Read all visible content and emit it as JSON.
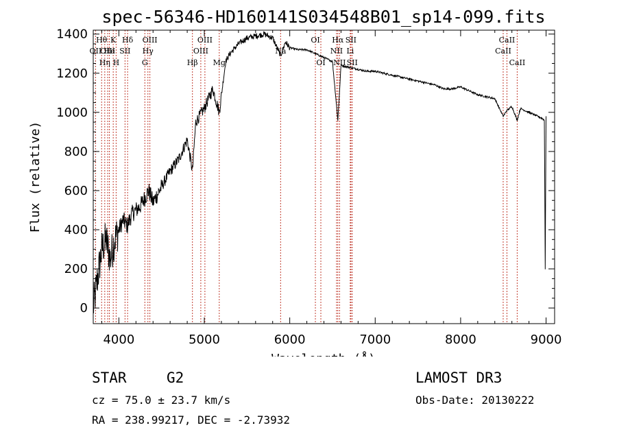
{
  "chart_data": {
    "type": "line",
    "title": "spec-56346-HD160141S034548B01_sp14-099.fits",
    "xlabel": "Wavelength (Å)",
    "ylabel": "Flux (relative)",
    "xlim": [
      3700,
      9100
    ],
    "ylim": [
      -80,
      1420
    ],
    "xticks": [
      4000,
      5000,
      6000,
      7000,
      8000,
      9000
    ],
    "yticks": [
      0,
      200,
      400,
      600,
      800,
      1000,
      1200,
      1400
    ],
    "series": [
      {
        "name": "flux",
        "x": [
          3700,
          3750,
          3800,
          3850,
          3900,
          3950,
          4000,
          4050,
          4100,
          4150,
          4200,
          4250,
          4300,
          4350,
          4400,
          4500,
          4600,
          4700,
          4800,
          4861,
          4900,
          5000,
          5100,
          5175,
          5250,
          5300,
          5400,
          5500,
          5600,
          5700,
          5800,
          5893,
          5950,
          6000,
          6100,
          6200,
          6300,
          6400,
          6500,
          6563,
          6600,
          6700,
          6800,
          6900,
          7000,
          7100,
          7200,
          7300,
          7400,
          7500,
          7600,
          7700,
          7800,
          7900,
          8000,
          8100,
          8200,
          8300,
          8400,
          8498,
          8542,
          8600,
          8662,
          8700,
          8800,
          8850,
          8900,
          8950,
          8980,
          8990,
          9000
        ],
        "y": [
          0,
          150,
          300,
          350,
          250,
          350,
          400,
          450,
          420,
          480,
          500,
          520,
          560,
          600,
          540,
          620,
          700,
          760,
          860,
          700,
          950,
          1020,
          1120,
          1000,
          1260,
          1300,
          1350,
          1380,
          1390,
          1400,
          1380,
          1290,
          1360,
          1330,
          1320,
          1320,
          1300,
          1280,
          1260,
          960,
          1240,
          1230,
          1220,
          1210,
          1210,
          1200,
          1190,
          1180,
          1170,
          1160,
          1150,
          1140,
          1120,
          1120,
          1130,
          1110,
          1090,
          1080,
          1070,
          980,
          1010,
          1030,
          960,
          1020,
          1000,
          990,
          980,
          970,
          960,
          200,
          980
        ]
      }
    ],
    "line_labels": [
      {
        "label": "Hθ",
        "wavelength": 3798,
        "row": 0
      },
      {
        "label": "OII",
        "wavelength": 3727,
        "row": 1
      },
      {
        "label": "OIII",
        "wavelength": 3869,
        "row": 1
      },
      {
        "label": "K",
        "wavelength": 3934,
        "row": 0
      },
      {
        "label": "He",
        "wavelength": 3889,
        "row": 1
      },
      {
        "label": "Hη",
        "wavelength": 3835,
        "row": 2
      },
      {
        "label": "H",
        "wavelength": 3968,
        "row": 2
      },
      {
        "label": "Hδ",
        "wavelength": 4102,
        "row": 0
      },
      {
        "label": "SII",
        "wavelength": 4072,
        "row": 1
      },
      {
        "label": "OIII",
        "wavelength": 4363,
        "row": 0
      },
      {
        "label": "Hγ",
        "wavelength": 4340,
        "row": 1
      },
      {
        "label": "G",
        "wavelength": 4304,
        "row": 2
      },
      {
        "label": "Hβ",
        "wavelength": 4861,
        "row": 2
      },
      {
        "label": "OIII",
        "wavelength": 5007,
        "row": 0
      },
      {
        "label": "OIII",
        "wavelength": 4959,
        "row": 1
      },
      {
        "label": "Mg",
        "wavelength": 5175,
        "row": 2
      },
      {
        "label": "Na",
        "wavelength": 5893,
        "row": 1
      },
      {
        "label": "OI",
        "wavelength": 6300,
        "row": 0
      },
      {
        "label": "OI",
        "wavelength": 6364,
        "row": 2
      },
      {
        "label": "Hα",
        "wavelength": 6563,
        "row": 0
      },
      {
        "label": "NII",
        "wavelength": 6548,
        "row": 1
      },
      {
        "label": "NII",
        "wavelength": 6583,
        "row": 2
      },
      {
        "label": "SII",
        "wavelength": 6716,
        "row": 0
      },
      {
        "label": "Li",
        "wavelength": 6708,
        "row": 1
      },
      {
        "label": "SII",
        "wavelength": 6731,
        "row": 2
      },
      {
        "label": "CaII",
        "wavelength": 8542,
        "row": 0
      },
      {
        "label": "CaII",
        "wavelength": 8498,
        "row": 1
      },
      {
        "label": "CaII",
        "wavelength": 8662,
        "row": 2
      }
    ],
    "marker_color": "#c0392b"
  },
  "info": {
    "class": "STAR",
    "subclass": "G2",
    "survey": "LAMOST DR3",
    "cz": "cz = 75.0 ± 23.7 km/s",
    "obs_date": "Obs-Date: 20130222",
    "coords": "RA = 238.99217, DEC =  -2.73932"
  }
}
